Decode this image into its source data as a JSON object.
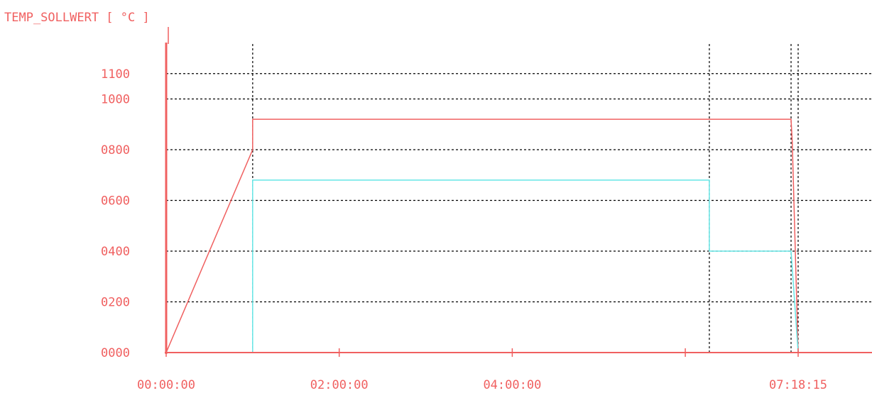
{
  "chart_data": {
    "type": "line",
    "title": "TEMP_SOLLWERT [ °C ]",
    "ylabel": "TEMP_SOLLWERT [ °C ]",
    "xlabel": "",
    "ylim": [
      0,
      1100
    ],
    "y_ticks": [
      {
        "value": 0,
        "label": "0000"
      },
      {
        "value": 200,
        "label": "0200"
      },
      {
        "value": 400,
        "label": "0400"
      },
      {
        "value": 600,
        "label": "0600"
      },
      {
        "value": 800,
        "label": "0800"
      },
      {
        "value": 1000,
        "label": "1000"
      },
      {
        "value": 1100,
        "label": "1100"
      }
    ],
    "x_tick_labels": [
      {
        "value": 0,
        "label": "00:00:00"
      },
      {
        "value": 7200,
        "label": "02:00:00"
      },
      {
        "value": 14400,
        "label": "04:00:00"
      },
      {
        "value": 26295,
        "label": "07:18:15"
      }
    ],
    "x_tick_marks": [
      0,
      7200,
      14400,
      21600,
      26295
    ],
    "vertical_markers": [
      3600,
      22600,
      26000,
      26295
    ],
    "grid": {
      "horizontal": true,
      "style": "dotted"
    },
    "colors": {
      "axis": "#f06060",
      "red_series": "#f06060",
      "cyan_series": "#66e6e6",
      "grid": "#000000",
      "text": "#f06060"
    },
    "series": [
      {
        "color": "#f06060",
        "points": [
          [
            0,
            0
          ],
          [
            3600,
            800
          ],
          [
            3600,
            920
          ],
          [
            26000,
            920
          ],
          [
            26050,
            830
          ],
          [
            26295,
            0
          ]
        ]
      },
      {
        "color": "#66e6e6",
        "points": [
          [
            0,
            0
          ],
          [
            3600,
            0
          ],
          [
            3600,
            680
          ],
          [
            22600,
            680
          ],
          [
            22600,
            400
          ],
          [
            26000,
            400
          ],
          [
            26295,
            0
          ]
        ]
      }
    ]
  }
}
